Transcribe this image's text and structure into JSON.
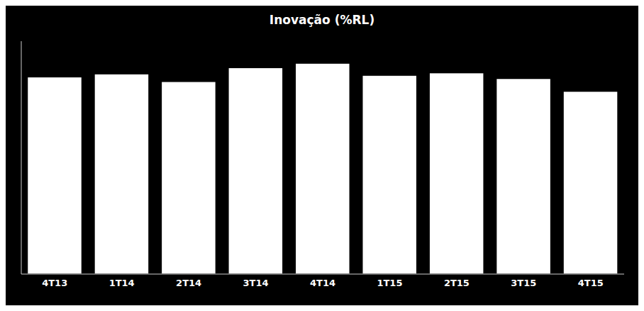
{
  "chart_data": {
    "type": "bar",
    "title": "Inovação (%RL)",
    "categories": [
      "4T13",
      "1T14",
      "2T14",
      "3T14",
      "4T14",
      "1T15",
      "2T15",
      "3T15",
      "4T15"
    ],
    "values": [
      63.5,
      64.5,
      62.0,
      66.5,
      67.9,
      64.0,
      64.8,
      63.0,
      58.9
    ],
    "color": "#ffffff",
    "ylim": [
      0,
      75
    ],
    "grid": false,
    "tick_labels": "x"
  }
}
